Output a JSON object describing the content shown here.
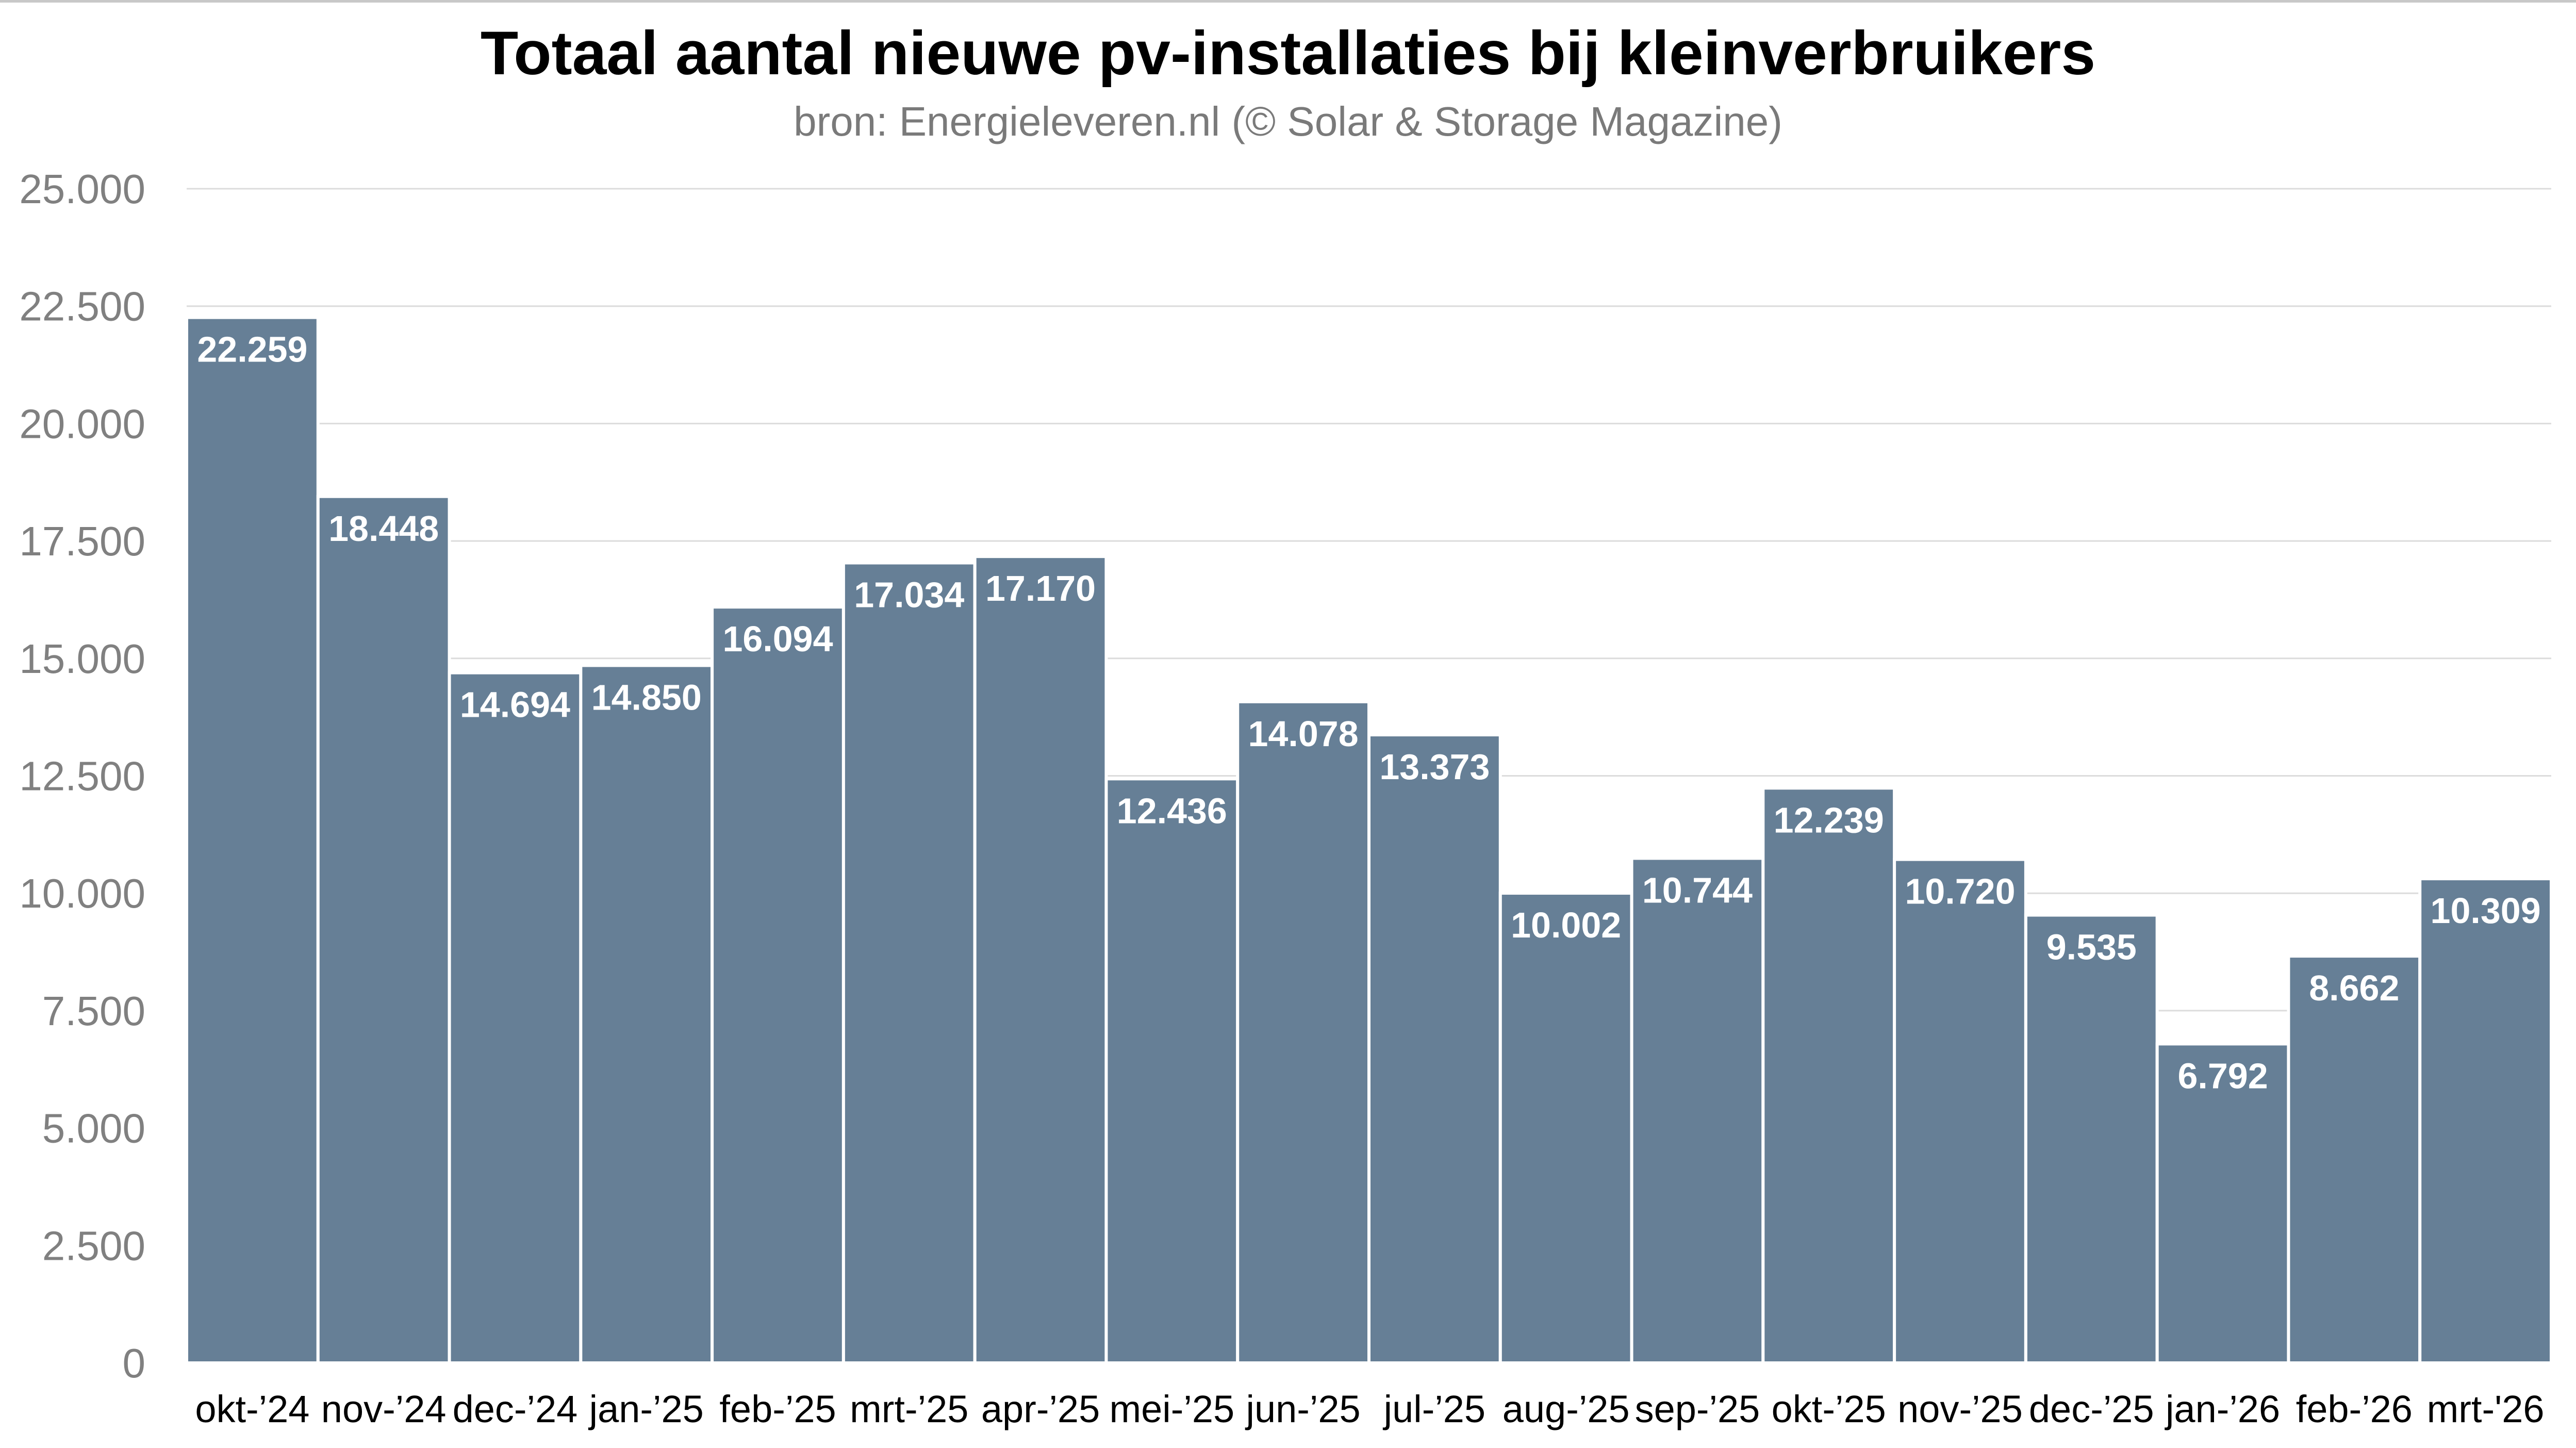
{
  "chart_data": {
    "type": "bar",
    "title": "Totaal aantal nieuwe pv-installaties bij kleinverbruikers",
    "subtitle": "bron: Energieleveren.nl (© Solar & Storage Magazine)",
    "xlabel": "",
    "ylabel": "",
    "categories": [
      "okt-’24",
      "nov-’24",
      "dec-’24",
      "jan-’25",
      "feb-’25",
      "mrt-’25",
      "apr-’25",
      "mei-’25",
      "jun-’25",
      "jul-’25",
      "aug-’25",
      "sep-’25",
      "okt-’25",
      "nov-’25",
      "dec-’25",
      "jan-’26",
      "feb-’26",
      "mrt-'26"
    ],
    "values": [
      22259,
      18448,
      14694,
      14850,
      16094,
      17034,
      17170,
      12436,
      14078,
      13373,
      10002,
      10744,
      12239,
      10720,
      9535,
      6792,
      8662,
      10309
    ],
    "value_labels": [
      "22.259",
      "18.448",
      "14.694",
      "14.850",
      "16.094",
      "17.034",
      "17.170",
      "12.436",
      "14.078",
      "13.373",
      "10.002",
      "10.744",
      "12.239",
      "10.720",
      "9.535",
      "6.792",
      "8.662",
      "10.309"
    ],
    "ylim": [
      0,
      25000
    ],
    "yticks": [
      0,
      2500,
      5000,
      7500,
      10000,
      12500,
      15000,
      17500,
      20000,
      22500,
      25000
    ],
    "ytick_labels": [
      "0",
      "2.500",
      "5.000",
      "7.500",
      "10.000",
      "12.500",
      "15.000",
      "17.500",
      "20.000",
      "22.500",
      "25.000"
    ],
    "grid": true,
    "legend": "none",
    "bar_color": "#667f96"
  }
}
